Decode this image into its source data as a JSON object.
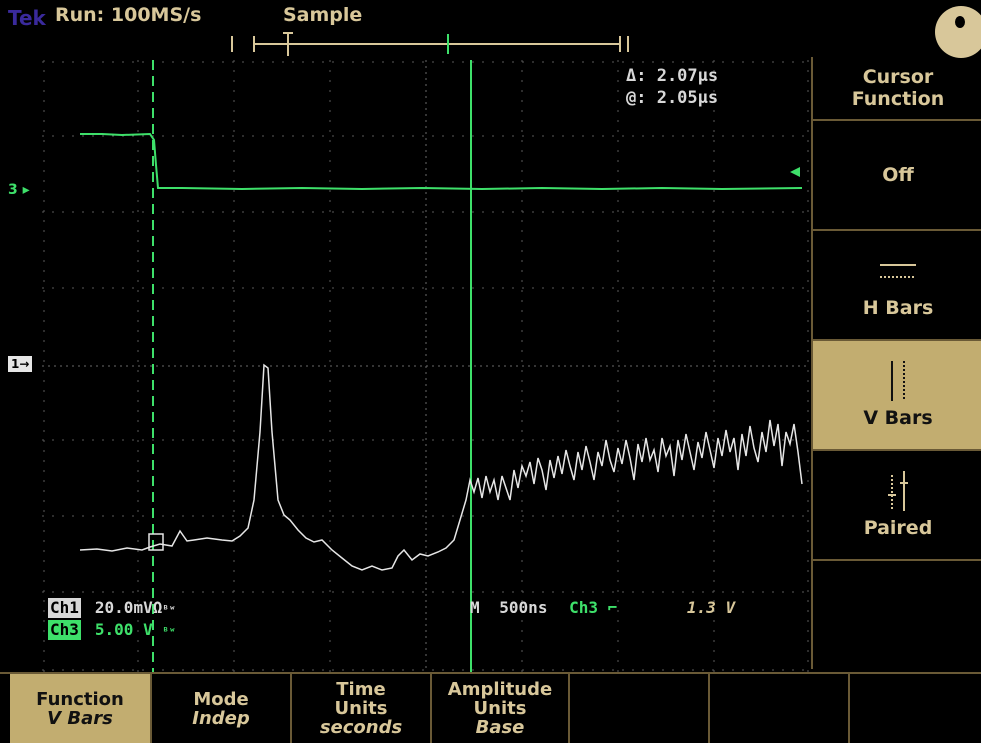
{
  "top": {
    "brand": "Tek",
    "run_status": "Run: 100MS/s",
    "acq_mode": "Sample"
  },
  "cursor_readout": {
    "delta": "Δ: 2.07µs",
    "at": "@: 2.05µs"
  },
  "markers": {
    "ch3": "3",
    "ch1": "1"
  },
  "channels": [
    {
      "tag": "Ch1",
      "scale": "20.0mVΩ",
      "sym": "ᴮʷ"
    },
    {
      "tag": "Ch3",
      "scale": "5.00 V",
      "sym": "ᴮʷ"
    }
  ],
  "timebase": {
    "label": "M",
    "value": "500ns",
    "trig_src": "Ch3",
    "slope": "⌐",
    "level": "1.3 V"
  },
  "side_menu": {
    "title_line1": "Cursor",
    "title_line2": "Function",
    "items": [
      {
        "label": "Off"
      },
      {
        "label": "H Bars"
      },
      {
        "label": "V Bars"
      },
      {
        "label": "Paired"
      }
    ],
    "selected": "V Bars"
  },
  "bottom_menu": [
    {
      "label": "Function",
      "value": "V Bars"
    },
    {
      "label": "Mode",
      "value": "Indep"
    },
    {
      "label": "Time\nUnits",
      "value": "seconds"
    },
    {
      "label": "Amplitude\nUnits",
      "value": "Base"
    }
  ],
  "colors": {
    "menu": "#c2ad70",
    "ch3": "#3ee06a",
    "ch1": "#e6e6e6"
  }
}
